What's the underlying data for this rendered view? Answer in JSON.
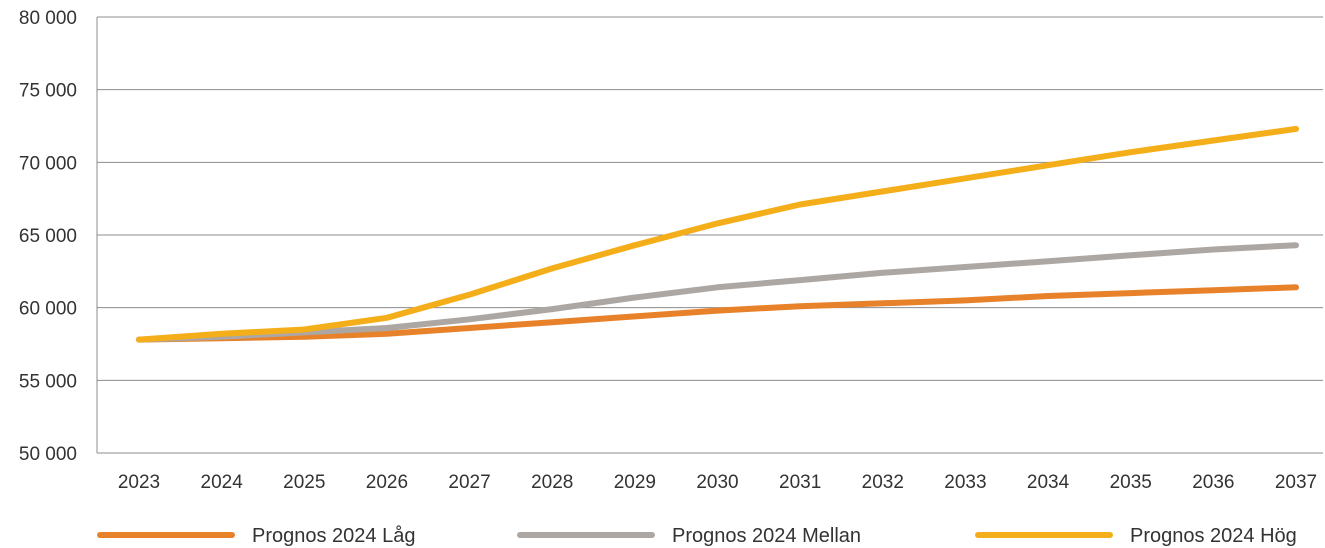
{
  "chart_data": {
    "type": "line",
    "title": "",
    "xlabel": "",
    "ylabel": "",
    "categories": [
      "2023",
      "2024",
      "2025",
      "2026",
      "2027",
      "2028",
      "2029",
      "2030",
      "2031",
      "2032",
      "2033",
      "2034",
      "2035",
      "2036",
      "2037"
    ],
    "ylim": [
      50000,
      80000
    ],
    "yticks": [
      50000,
      55000,
      60000,
      65000,
      70000,
      75000,
      80000
    ],
    "ytick_labels": [
      "50 000",
      "55 000",
      "60 000",
      "65 000",
      "70 000",
      "75 000",
      "80 000"
    ],
    "grid": "horizontal",
    "legend_position": "bottom",
    "series": [
      {
        "name": "Prognos 2024 Låg",
        "color": "#E8822A",
        "values": [
          57800,
          57900,
          58000,
          58200,
          58600,
          59000,
          59400,
          59800,
          60100,
          60300,
          60500,
          60800,
          61000,
          61200,
          61400
        ]
      },
      {
        "name": "Prognos 2024 Mellan",
        "color": "#ADA7A3",
        "values": [
          57800,
          58000,
          58300,
          58600,
          59200,
          59900,
          60700,
          61400,
          61900,
          62400,
          62800,
          63200,
          63600,
          64000,
          64300
        ]
      },
      {
        "name": "Prognos 2024 Hög",
        "color": "#F4AE1A",
        "values": [
          57800,
          58200,
          58500,
          59300,
          60900,
          62700,
          64300,
          65800,
          67100,
          68000,
          68900,
          69800,
          70700,
          71500,
          72300
        ]
      }
    ]
  }
}
